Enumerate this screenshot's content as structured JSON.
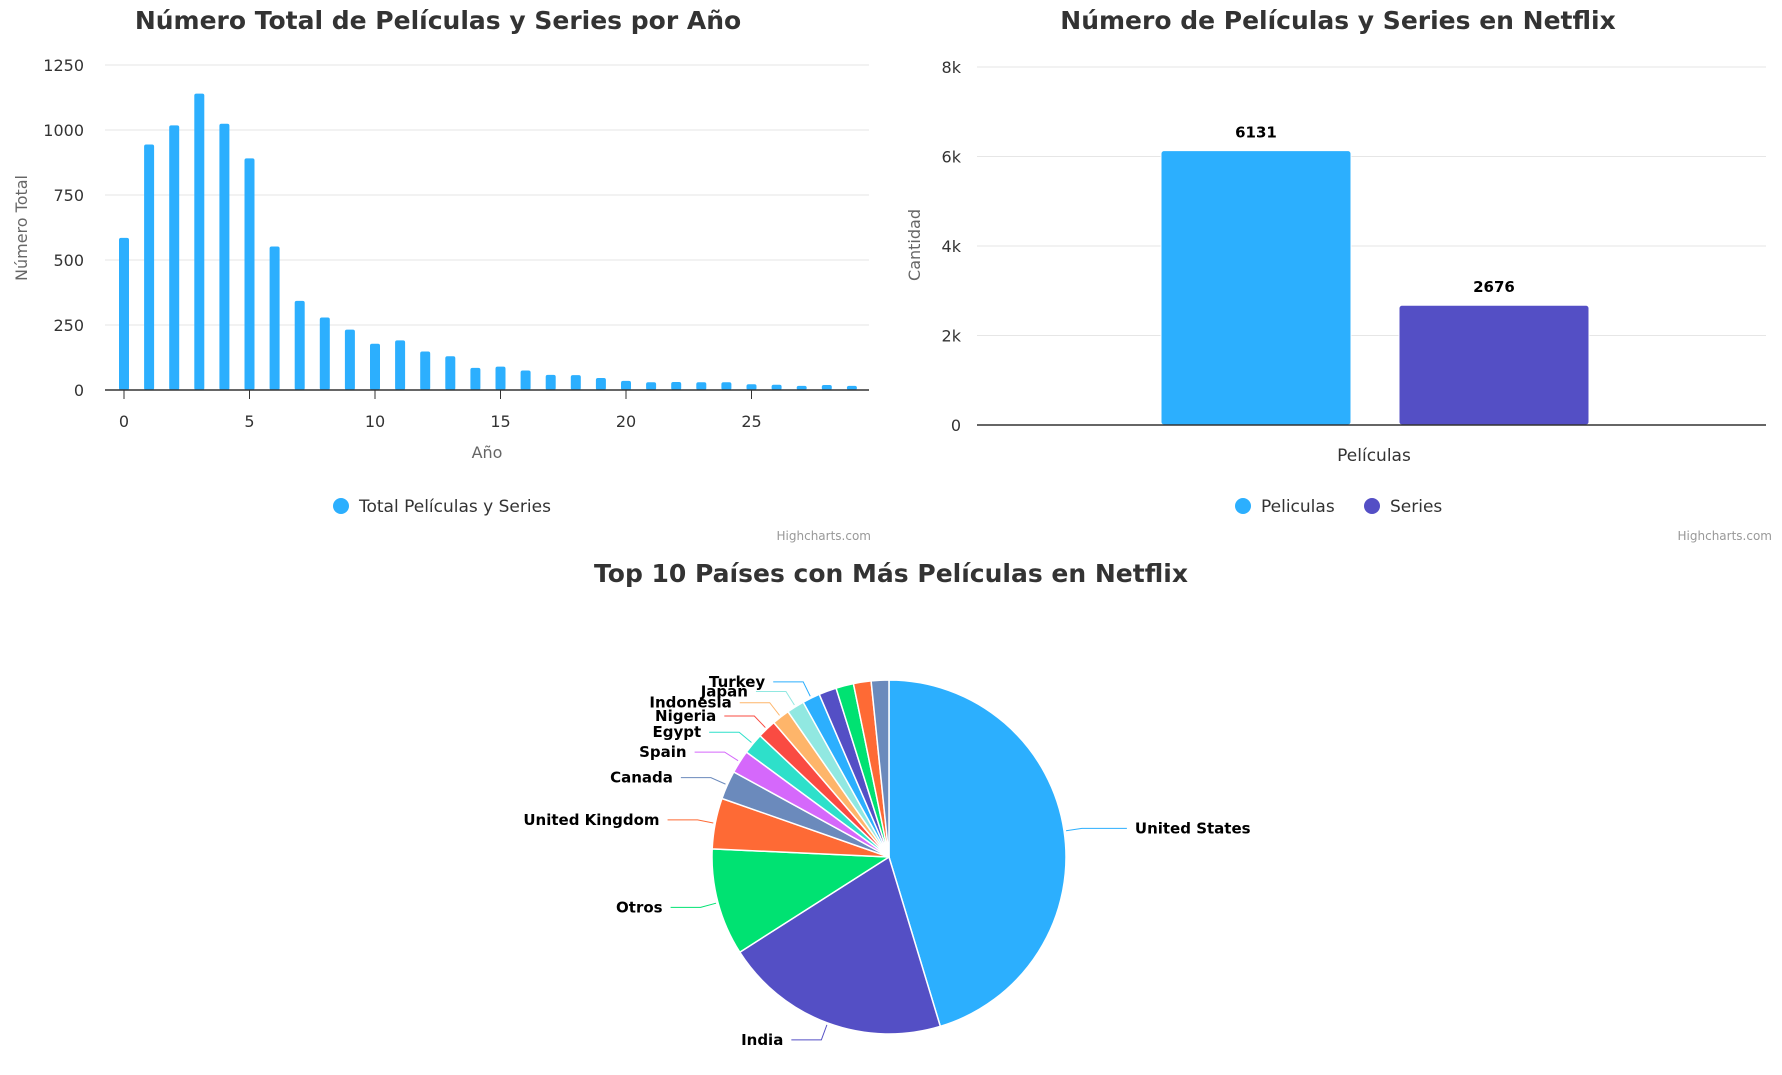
{
  "credits": "Highcharts.com",
  "chart_data": [
    {
      "type": "bar",
      "title": "Número Total de Películas y Series por Año",
      "xlabel": "Año",
      "ylabel": "Número Total",
      "ylim": [
        0,
        1250
      ],
      "y_ticks": [
        "0",
        "250",
        "500",
        "750",
        "1000",
        "1250"
      ],
      "x_ticks": [
        "0",
        "5",
        "10",
        "15",
        "20",
        "25"
      ],
      "legend": "bottom-center",
      "grid": true,
      "series": [
        {
          "name": "Total Películas y Series",
          "color": "#2caffe",
          "x": [
            0,
            1,
            2,
            3,
            4,
            5,
            6,
            7,
            8,
            9,
            10,
            11,
            12,
            13,
            14,
            15,
            16,
            17,
            18,
            19,
            20,
            21,
            22,
            23,
            24,
            25,
            26,
            27,
            28,
            29
          ],
          "values": [
            585,
            944,
            1018,
            1140,
            1024,
            891,
            552,
            343,
            279,
            232,
            178,
            191,
            148,
            130,
            85,
            90,
            75,
            58,
            57,
            46,
            35,
            30,
            31,
            30,
            30,
            22,
            20,
            16,
            19,
            16
          ]
        }
      ]
    },
    {
      "type": "bar",
      "title": "Número de Películas y Series en Netflix",
      "xlabel": "",
      "ylabel": "Cantidad",
      "categories": [
        "Películas"
      ],
      "ylim": [
        0,
        8000
      ],
      "y_ticks": [
        "0",
        "2k",
        "4k",
        "6k",
        "8k"
      ],
      "legend": "bottom-center",
      "grid": true,
      "series": [
        {
          "name": "Peliculas",
          "color": "#2caffe",
          "values": [
            6131
          ],
          "label": "6131"
        },
        {
          "name": "Series",
          "color": "#544fc5",
          "values": [
            2676
          ],
          "label": "2676"
        }
      ]
    },
    {
      "type": "pie",
      "title": "Top 10 Países con Más Películas en Netflix",
      "slices": [
        {
          "name": "United States",
          "value": 45.0,
          "color": "#2caffe"
        },
        {
          "name": "India",
          "value": 20.5,
          "color": "#544fc5"
        },
        {
          "name": "Otros",
          "value": 9.7,
          "color": "#00e272"
        },
        {
          "name": "United Kingdom",
          "value": 4.6,
          "color": "#fe6a35"
        },
        {
          "name": "Canada",
          "value": 2.6,
          "color": "#6b8abc"
        },
        {
          "name": "Spain",
          "value": 2.1,
          "color": "#d568fb"
        },
        {
          "name": "Egypt",
          "value": 1.9,
          "color": "#2ee0ca"
        },
        {
          "name": "Nigeria",
          "value": 1.7,
          "color": "#fa4b42"
        },
        {
          "name": "Indonesia",
          "value": 1.6,
          "color": "#feb56a"
        },
        {
          "name": "Japan",
          "value": 1.6,
          "color": "#91e8e1"
        },
        {
          "name": "Turkey",
          "value": 1.6,
          "color": "#2caffe"
        },
        {
          "name": "",
          "value": 1.6,
          "color": "#544fc5"
        },
        {
          "name": "",
          "value": 1.6,
          "color": "#00e272"
        },
        {
          "name": "",
          "value": 1.6,
          "color": "#fe6a35"
        },
        {
          "name": "",
          "value": 1.6,
          "color": "#6b8abc"
        }
      ]
    }
  ]
}
